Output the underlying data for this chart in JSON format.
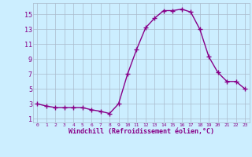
{
  "x": [
    0,
    1,
    2,
    3,
    4,
    5,
    6,
    7,
    8,
    9,
    10,
    11,
    12,
    13,
    14,
    15,
    16,
    17,
    18,
    19,
    20,
    21,
    22,
    23
  ],
  "y": [
    3.0,
    2.7,
    2.5,
    2.5,
    2.5,
    2.5,
    2.2,
    2.0,
    1.7,
    3.0,
    7.0,
    10.3,
    13.2,
    14.5,
    15.5,
    15.5,
    15.7,
    15.3,
    13.0,
    9.3,
    7.2,
    6.0,
    6.0,
    5.0
  ],
  "line_color": "#880088",
  "marker": "+",
  "marker_size": 4,
  "marker_lw": 1.0,
  "bg_color": "#cceeff",
  "grid_color": "#aabbcc",
  "xlabel": "Windchill (Refroidissement éolien,°C)",
  "ylabel_ticks": [
    1,
    3,
    5,
    7,
    9,
    11,
    13,
    15
  ],
  "xtick_labels": [
    "0",
    "1",
    "2",
    "3",
    "4",
    "5",
    "6",
    "7",
    "8",
    "9",
    "10",
    "11",
    "12",
    "13",
    "14",
    "15",
    "16",
    "17",
    "18",
    "19",
    "20",
    "21",
    "22",
    "23"
  ],
  "ylim": [
    0.5,
    16.5
  ],
  "xlim": [
    -0.5,
    23.5
  ],
  "xlabel_color": "#880088",
  "tick_color": "#880088",
  "font_name": "monospace",
  "line_width": 1.0,
  "linestyle": "-"
}
